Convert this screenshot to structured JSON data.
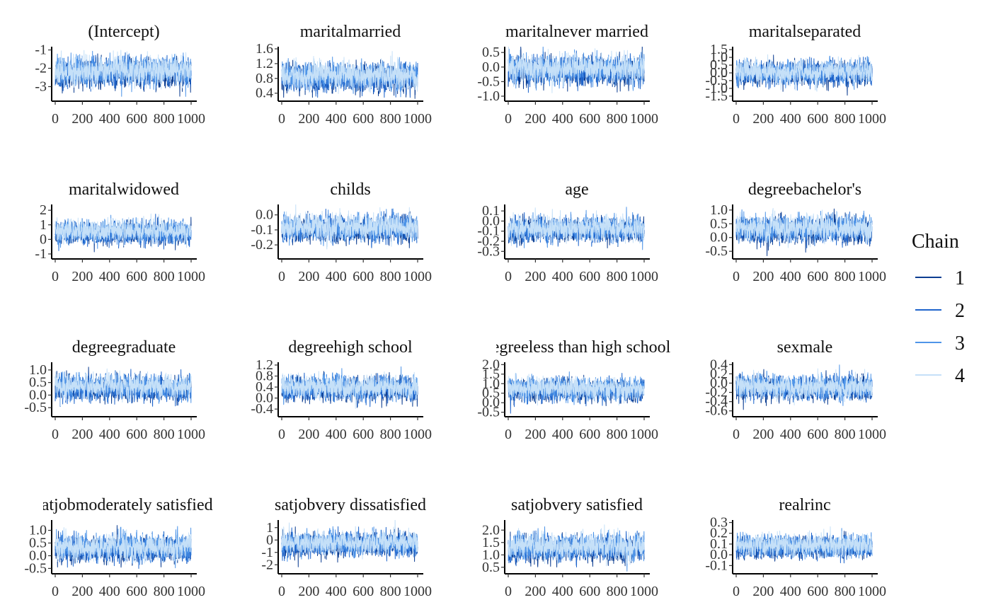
{
  "chart_data": {
    "type": "line",
    "x_ticks": [
      "0",
      "200",
      "400",
      "600",
      "800",
      "1000"
    ],
    "xlim": [
      0,
      1000
    ],
    "iterations": 1000,
    "legend": {
      "title": "Chain",
      "position": "right",
      "entries": [
        {
          "label": "1",
          "color": "#0c3d91"
        },
        {
          "label": "2",
          "color": "#1f65cc"
        },
        {
          "label": "3",
          "color": "#4f95e8"
        },
        {
          "label": "4",
          "color": "#c5e0f8"
        }
      ]
    },
    "panels": [
      {
        "title": "(Intercept)",
        "y_ticks": [
          "-1",
          "-2",
          "-3"
        ],
        "y_tick_values": [
          -1,
          -2,
          -3
        ],
        "ylim": [
          -3.6,
          -0.9
        ],
        "center": -2.2,
        "sd": 0.45
      },
      {
        "title": "maritalmarried",
        "y_ticks": [
          "1.6",
          "1.2",
          "0.8",
          "0.4"
        ],
        "y_tick_values": [
          1.6,
          1.2,
          0.8,
          0.4
        ],
        "ylim": [
          0.28,
          1.62
        ],
        "center": 0.85,
        "sd": 0.22
      },
      {
        "title": "maritalnever married",
        "y_ticks": [
          "0.5",
          "0.0",
          "-0.5",
          "-1.0"
        ],
        "y_tick_values": [
          0.5,
          0.0,
          -0.5,
          -1.0
        ],
        "ylim": [
          -1.05,
          0.65
        ],
        "center": -0.1,
        "sd": 0.28
      },
      {
        "title": "maritalseparated",
        "y_ticks": [
          "1.5",
          "1.0",
          "0.5",
          "0.0",
          "-0.5",
          "-1.0",
          "-1.5"
        ],
        "y_tick_values": [
          1.5,
          1.0,
          0.5,
          0.0,
          -0.5,
          -1.0,
          -1.5
        ],
        "ylim": [
          -1.6,
          1.6
        ],
        "center": 0.0,
        "sd": 0.45
      },
      {
        "title": "maritalwidowed",
        "y_ticks": [
          "2",
          "1",
          "0",
          "-1"
        ],
        "y_tick_values": [
          2,
          1,
          0,
          -1
        ],
        "ylim": [
          -1.1,
          2.3
        ],
        "center": 0.5,
        "sd": 0.45
      },
      {
        "title": "childs",
        "y_ticks": [
          "0.0",
          "-0.1",
          "-0.2"
        ],
        "y_tick_values": [
          0.0,
          -0.1,
          -0.2
        ],
        "ylim": [
          -0.27,
          0.06
        ],
        "center": -0.09,
        "sd": 0.05
      },
      {
        "title": "age",
        "y_ticks": [
          "0.1",
          "0.0",
          "-0.1",
          "-0.2",
          "-0.3"
        ],
        "y_tick_values": [
          0.1,
          0.0,
          -0.1,
          -0.2,
          -0.3
        ],
        "ylim": [
          -0.34,
          0.15
        ],
        "center": -0.08,
        "sd": 0.07
      },
      {
        "title": "degreebachelor's",
        "y_ticks": [
          "1.0",
          "0.5",
          "0.0",
          "-0.5"
        ],
        "y_tick_values": [
          1.0,
          0.5,
          0.0,
          -0.5
        ],
        "ylim": [
          -0.65,
          1.15
        ],
        "center": 0.3,
        "sd": 0.28
      },
      {
        "title": "degreegraduate",
        "y_ticks": [
          "1.0",
          "0.5",
          "0.0",
          "-0.5"
        ],
        "y_tick_values": [
          1.0,
          0.5,
          0.0,
          -0.5
        ],
        "ylim": [
          -0.72,
          1.25
        ],
        "center": 0.3,
        "sd": 0.28
      },
      {
        "title": "degreehigh school",
        "y_ticks": [
          "1.2",
          "0.8",
          "0.4",
          "0.0",
          "-0.4"
        ],
        "y_tick_values": [
          1.2,
          0.8,
          0.4,
          0.0,
          -0.4
        ],
        "ylim": [
          -0.55,
          1.25
        ],
        "center": 0.35,
        "sd": 0.25
      },
      {
        "title": "degreeless than high school",
        "y_ticks": [
          "2.0",
          "1.5",
          "1.0",
          "0.5",
          "0.0",
          "-0.5"
        ],
        "y_tick_values": [
          2.0,
          1.5,
          1.0,
          0.5,
          0.0,
          -0.5
        ],
        "ylim": [
          -0.55,
          2.05
        ],
        "center": 0.7,
        "sd": 0.35
      },
      {
        "title": "sexmale",
        "y_ticks": [
          "0.4",
          "0.2",
          "0.0",
          "-0.2",
          "-0.4",
          "-0.6"
        ],
        "y_tick_values": [
          0.4,
          0.2,
          0.0,
          -0.2,
          -0.4,
          -0.6
        ],
        "ylim": [
          -0.65,
          0.42
        ],
        "center": -0.1,
        "sd": 0.15
      },
      {
        "title": "satjobmoderately satisfied",
        "y_ticks": [
          "1.0",
          "0.5",
          "0.0",
          "-0.5"
        ],
        "y_tick_values": [
          1.0,
          0.5,
          0.0,
          -0.5
        ],
        "ylim": [
          -0.6,
          1.35
        ],
        "center": 0.3,
        "sd": 0.3
      },
      {
        "title": "satjobvery dissatisfied",
        "y_ticks": [
          "1",
          "0",
          "-1",
          "-2"
        ],
        "y_tick_values": [
          1,
          0,
          -1,
          -2
        ],
        "ylim": [
          -2.5,
          1.5
        ],
        "center": -0.3,
        "sd": 0.55
      },
      {
        "title": "satjobvery satisfied",
        "y_ticks": [
          "2.0",
          "1.5",
          "1.0",
          "0.5"
        ],
        "y_tick_values": [
          2.0,
          1.5,
          1.0,
          0.5
        ],
        "ylim": [
          0.35,
          2.35
        ],
        "center": 1.3,
        "sd": 0.3
      },
      {
        "title": "realrinc",
        "y_ticks": [
          "0.3",
          "0.2",
          "0.1",
          "0.0",
          "-0.1"
        ],
        "y_tick_values": [
          0.3,
          0.2,
          0.1,
          0.0,
          -0.1
        ],
        "ylim": [
          -0.15,
          0.31
        ],
        "center": 0.08,
        "sd": 0.06
      }
    ]
  }
}
